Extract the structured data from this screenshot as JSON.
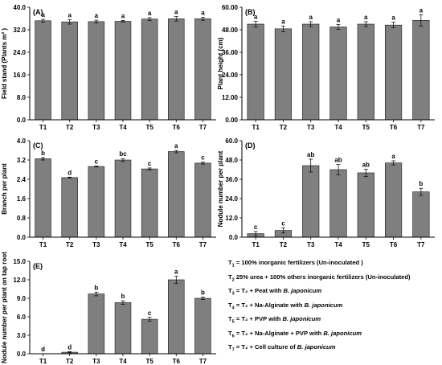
{
  "chart_data": [
    {
      "type": "bar",
      "panel_label": "(A)",
      "ylabel": "Field stand (Plants m² )",
      "ylim": [
        0,
        40
      ],
      "yticks": [
        "0.0",
        "8.0",
        "16.0",
        "24.0",
        "32.0",
        "40.0"
      ],
      "categories": [
        "T1",
        "T2",
        "T3",
        "T4",
        "T5",
        "T6",
        "T7"
      ],
      "values": [
        35.2,
        34.8,
        34.9,
        35.0,
        35.8,
        35.9,
        35.9
      ],
      "errors": [
        0.5,
        0.8,
        0.5,
        0.3,
        0.5,
        0.8,
        0.5
      ],
      "letters": [
        "a",
        "a",
        "a",
        "a",
        "a",
        "a",
        "a"
      ]
    },
    {
      "type": "bar",
      "panel_label": "(B)",
      "ylabel": "Plant height (cm)",
      "ylim": [
        0,
        60
      ],
      "yticks": [
        "0.00",
        "12.00",
        "24.00",
        "36.00",
        "48.00",
        "60.00"
      ],
      "categories": [
        "T1",
        "T2",
        "T3",
        "T4",
        "T5",
        "T6",
        "T7"
      ],
      "values": [
        51.0,
        48.5,
        51.0,
        49.5,
        51.0,
        50.5,
        53.0
      ],
      "errors": [
        1.5,
        1.5,
        1.3,
        1.3,
        1.3,
        1.5,
        3.0
      ],
      "letters": [
        "a",
        "a",
        "a",
        "a",
        "a",
        "a",
        "a"
      ]
    },
    {
      "type": "bar",
      "panel_label": "(C)",
      "ylabel": "Branch per plant",
      "ylim": [
        0,
        4
      ],
      "yticks": [
        "0.0",
        "0.8",
        "1.6",
        "2.4",
        "3.2",
        "4.0"
      ],
      "categories": [
        "T1",
        "T2",
        "T3",
        "T4",
        "T5",
        "T6",
        "T7"
      ],
      "values": [
        3.25,
        2.47,
        2.93,
        3.2,
        2.83,
        3.55,
        3.07
      ],
      "errors": [
        0.05,
        0.02,
        0.02,
        0.06,
        0.04,
        0.05,
        0.04
      ],
      "letters": [
        "b",
        "d",
        "c",
        "bc",
        "c",
        "a",
        "c"
      ]
    },
    {
      "type": "bar",
      "panel_label": "(D)",
      "ylabel": "Nodule number per plant",
      "ylim": [
        0,
        60
      ],
      "yticks": [
        "0.0",
        "12.0",
        "24.0",
        "36.0",
        "48.0",
        "60.0"
      ],
      "categories": [
        "T1",
        "T2",
        "T3",
        "T4",
        "T5",
        "T6",
        "T7"
      ],
      "values": [
        2.2,
        4.2,
        44.5,
        42.0,
        40.0,
        46.2,
        28.2
      ],
      "errors": [
        1.3,
        1.6,
        4.0,
        3.3,
        2.3,
        1.3,
        2.2
      ],
      "letters": [
        "c",
        "c",
        "ab",
        "ab",
        "ab",
        "a",
        "b"
      ]
    },
    {
      "type": "bar",
      "panel_label": "(E)",
      "ylabel": "Nodule number per plant on tap root",
      "ylim": [
        0,
        15
      ],
      "yticks": [
        "0.0",
        "3.0",
        "6.0",
        "9.0",
        "12.0",
        "15.0"
      ],
      "categories": [
        "T1",
        "T2",
        "T3",
        "T4",
        "T5",
        "T6",
        "T7"
      ],
      "values": [
        0.0,
        0.25,
        9.7,
        8.3,
        5.6,
        12.0,
        9.0
      ],
      "errors": [
        0.0,
        0.1,
        0.3,
        0.3,
        0.3,
        0.6,
        0.2
      ],
      "letters": [
        "d",
        "d",
        "b",
        "b",
        "c",
        "a",
        "b"
      ]
    }
  ],
  "legend": [
    {
      "sym": "T",
      "sub": "1",
      "text": " = 100% inorganic fertilizers (Un-inoculated )",
      "italic": ""
    },
    {
      "sym": "T",
      "sub": "2",
      "text": " 25% urea + 100% others inorganic fertilizers (Un-inoculated)",
      "italic": ""
    },
    {
      "sym": "T",
      "sub": "3",
      "text": " = T₂ + Peat with ",
      "italic": "B. japonicum"
    },
    {
      "sym": "T",
      "sub": "4",
      "text": " = T₂ + Na-Alginate with ",
      "italic": "B. japonicum"
    },
    {
      "sym": "T",
      "sub": "5",
      "text": " = T₂ + PVP with ",
      "italic": "B. japonicum"
    },
    {
      "sym": "T",
      "sub": "6",
      "text": " = T₂ + Na-Alginate + PVP with ",
      "italic": "B. japonicum"
    },
    {
      "sym": "T",
      "sub": "7",
      "text": " = T₂ + Cell culture of ",
      "italic": "B. japonicum"
    }
  ],
  "style": {
    "bar_fill": "#7f7f7f",
    "bar_stroke": "#1a1a1a",
    "axis_color": "#000000",
    "text_color": "#000000"
  }
}
